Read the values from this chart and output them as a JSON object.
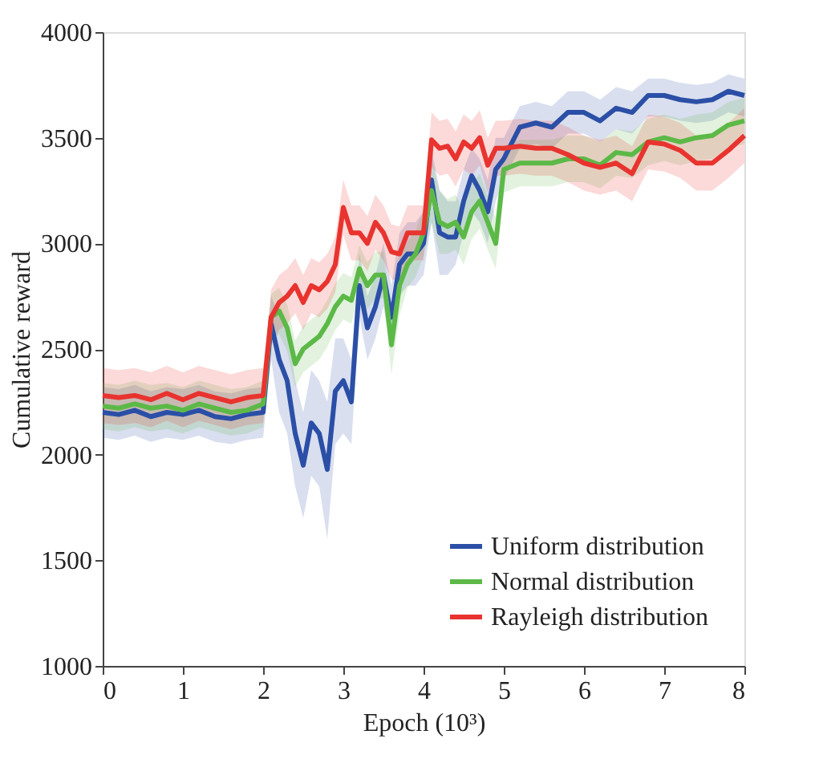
{
  "chart_data": {
    "type": "line",
    "xlabel": "Epoch (10³)",
    "ylabel": "Cumulative reward",
    "x": [
      0,
      0.2,
      0.4,
      0.6,
      0.8,
      1,
      1.2,
      1.4,
      1.6,
      1.8,
      2,
      2.1,
      2.2,
      2.3,
      2.4,
      2.5,
      2.6,
      2.7,
      2.8,
      2.9,
      3,
      3.1,
      3.2,
      3.3,
      3.4,
      3.5,
      3.6,
      3.7,
      3.8,
      3.9,
      4,
      4.1,
      4.2,
      4.3,
      4.4,
      4.5,
      4.6,
      4.7,
      4.8,
      4.9,
      5,
      5.2,
      5.4,
      5.6,
      5.8,
      6,
      6.2,
      6.4,
      6.6,
      6.8,
      7,
      7.2,
      7.4,
      7.6,
      7.8,
      8
    ],
    "xlim": [
      0,
      8
    ],
    "xticks": [
      0,
      1,
      2,
      3,
      4,
      5,
      6,
      7,
      8
    ],
    "ylim": [
      1000,
      4000
    ],
    "yticks": [
      1000,
      1500,
      2000,
      2500,
      3000,
      3500,
      4000
    ],
    "grid": false,
    "legend": "bottom right",
    "line_style": "solid",
    "marker": "none",
    "series": [
      {
        "name": "Uniform distribution",
        "color": "#2b4fa6",
        "values": [
          2200,
          2190,
          2210,
          2180,
          2200,
          2190,
          2210,
          2180,
          2170,
          2190,
          2200,
          2620,
          2450,
          2350,
          2100,
          1950,
          2150,
          2100,
          1930,
          2300,
          2350,
          2250,
          2800,
          2600,
          2700,
          2850,
          2650,
          2900,
          2950,
          2950,
          3000,
          3300,
          3050,
          3030,
          3030,
          3200,
          3320,
          3250,
          3150,
          3350,
          3400,
          3550,
          3570,
          3550,
          3620,
          3620,
          3580,
          3640,
          3620,
          3700,
          3700,
          3680,
          3670,
          3680,
          3720,
          3700
        ],
        "lower": [
          2080,
          2070,
          2090,
          2060,
          2080,
          2070,
          2090,
          2060,
          2050,
          2070,
          2080,
          2450,
          2200,
          2100,
          1850,
          1700,
          1900,
          1850,
          1600,
          2050,
          2100,
          2050,
          2650,
          2450,
          2550,
          2700,
          2500,
          2750,
          2800,
          2800,
          2850,
          3100,
          2850,
          2850,
          2900,
          3050,
          3150,
          3100,
          3000,
          3200,
          3300,
          3450,
          3470,
          3450,
          3520,
          3520,
          3480,
          3540,
          3520,
          3600,
          3600,
          3580,
          3570,
          3580,
          3620,
          3600
        ],
        "upper": [
          2320,
          2310,
          2330,
          2300,
          2320,
          2310,
          2330,
          2300,
          2290,
          2310,
          2320,
          2750,
          2650,
          2600,
          2350,
          2200,
          2400,
          2350,
          2250,
          2550,
          2550,
          2450,
          2950,
          2750,
          2850,
          3000,
          2800,
          3050,
          3100,
          3100,
          3150,
          3450,
          3250,
          3200,
          3200,
          3350,
          3450,
          3400,
          3300,
          3500,
          3500,
          3650,
          3670,
          3650,
          3720,
          3720,
          3680,
          3740,
          3720,
          3780,
          3780,
          3760,
          3750,
          3760,
          3800,
          3780
        ]
      },
      {
        "name": "Normal distribution",
        "color": "#5cb947",
        "values": [
          2230,
          2220,
          2240,
          2220,
          2230,
          2210,
          2240,
          2220,
          2200,
          2210,
          2240,
          2650,
          2680,
          2600,
          2430,
          2500,
          2530,
          2560,
          2620,
          2700,
          2750,
          2730,
          2880,
          2800,
          2850,
          2850,
          2520,
          2800,
          2900,
          2950,
          3050,
          3250,
          3100,
          3080,
          3100,
          3030,
          3150,
          3200,
          3100,
          3000,
          3350,
          3380,
          3380,
          3380,
          3400,
          3400,
          3370,
          3430,
          3420,
          3480,
          3500,
          3480,
          3500,
          3510,
          3560,
          3580
        ],
        "lower": [
          2120,
          2110,
          2130,
          2110,
          2120,
          2100,
          2130,
          2110,
          2090,
          2100,
          2130,
          2540,
          2570,
          2490,
          2320,
          2390,
          2420,
          2450,
          2510,
          2590,
          2640,
          2620,
          2770,
          2690,
          2740,
          2740,
          2380,
          2660,
          2790,
          2840,
          2940,
          3100,
          2950,
          2950,
          2970,
          2900,
          3020,
          3070,
          2970,
          2880,
          3240,
          3270,
          3270,
          3270,
          3290,
          3290,
          3260,
          3320,
          3310,
          3370,
          3390,
          3370,
          3390,
          3400,
          3450,
          3470
        ],
        "upper": [
          2340,
          2330,
          2350,
          2330,
          2340,
          2320,
          2350,
          2330,
          2310,
          2320,
          2350,
          2760,
          2790,
          2710,
          2540,
          2610,
          2640,
          2670,
          2730,
          2810,
          2860,
          2840,
          2990,
          2910,
          2960,
          2960,
          2660,
          2940,
          3010,
          3060,
          3160,
          3400,
          3250,
          3210,
          3230,
          3160,
          3280,
          3330,
          3230,
          3120,
          3460,
          3490,
          3490,
          3490,
          3510,
          3510,
          3480,
          3540,
          3530,
          3590,
          3610,
          3590,
          3610,
          3620,
          3670,
          3690
        ]
      },
      {
        "name": "Rayleigh distribution",
        "color": "#e8332f",
        "values": [
          2280,
          2270,
          2280,
          2260,
          2290,
          2260,
          2290,
          2270,
          2250,
          2270,
          2280,
          2650,
          2720,
          2750,
          2800,
          2720,
          2800,
          2780,
          2820,
          2900,
          3170,
          3050,
          3050,
          3000,
          3100,
          3050,
          2960,
          2950,
          3050,
          3050,
          3050,
          3490,
          3450,
          3460,
          3400,
          3480,
          3450,
          3500,
          3370,
          3450,
          3450,
          3460,
          3450,
          3450,
          3420,
          3380,
          3360,
          3380,
          3330,
          3480,
          3470,
          3440,
          3380,
          3380,
          3440,
          3510
        ],
        "lower": [
          2150,
          2140,
          2150,
          2130,
          2160,
          2130,
          2160,
          2140,
          2120,
          2140,
          2150,
          2520,
          2590,
          2620,
          2670,
          2590,
          2670,
          2650,
          2690,
          2770,
          3040,
          2920,
          2920,
          2870,
          2970,
          2920,
          2830,
          2820,
          2920,
          2920,
          2920,
          3360,
          3320,
          3330,
          3270,
          3350,
          3320,
          3370,
          3240,
          3320,
          3320,
          3330,
          3320,
          3320,
          3290,
          3250,
          3230,
          3250,
          3200,
          3350,
          3340,
          3310,
          3250,
          3250,
          3310,
          3380
        ],
        "upper": [
          2410,
          2400,
          2410,
          2390,
          2420,
          2390,
          2420,
          2400,
          2380,
          2400,
          2410,
          2780,
          2850,
          2880,
          2930,
          2850,
          2930,
          2910,
          2950,
          3030,
          3300,
          3180,
          3180,
          3130,
          3230,
          3180,
          3090,
          3080,
          3180,
          3180,
          3180,
          3620,
          3580,
          3590,
          3530,
          3610,
          3580,
          3630,
          3500,
          3580,
          3580,
          3590,
          3580,
          3580,
          3550,
          3510,
          3490,
          3510,
          3460,
          3610,
          3600,
          3570,
          3510,
          3510,
          3570,
          3640
        ]
      }
    ]
  }
}
